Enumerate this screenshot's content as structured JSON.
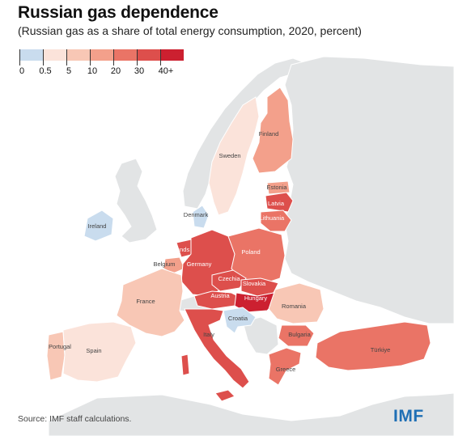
{
  "title": "Russian gas dependence",
  "subtitle": "(Russian gas as a share of total energy consumption, 2020, percent)",
  "legend": {
    "bins": [
      {
        "label": "0",
        "color": "#c9dcee"
      },
      {
        "label": "0.5",
        "color": "#fbe3da"
      },
      {
        "label": "5",
        "color": "#f8c7b5"
      },
      {
        "label": "10",
        "color": "#f3a08b"
      },
      {
        "label": "20",
        "color": "#ea7466"
      },
      {
        "label": "30",
        "color": "#dd4f4c"
      },
      {
        "label": "40+",
        "color": "#cc2030"
      }
    ]
  },
  "countries": {
    "finland": {
      "label": "Finland",
      "bin": 3
    },
    "sweden": {
      "label": "Sweden",
      "bin": 1
    },
    "estonia": {
      "label": "Estonia",
      "bin": 3
    },
    "latvia": {
      "label": "Latvia",
      "bin": 5
    },
    "lithuania": {
      "label": "Lithuania",
      "bin": 4
    },
    "denmark": {
      "label": "Denmark",
      "bin": 0
    },
    "ireland": {
      "label": "Ireland",
      "bin": 0
    },
    "netherlands": {
      "label": "Netherlands",
      "bin": 5
    },
    "belgium": {
      "label": "Belgium",
      "bin": 3
    },
    "germany": {
      "label": "Germany",
      "bin": 5
    },
    "poland": {
      "label": "Poland",
      "bin": 4
    },
    "czechia": {
      "label": "Czechia",
      "bin": 5
    },
    "slovakia": {
      "label": "Slovakia",
      "bin": 5
    },
    "austria": {
      "label": "Austria",
      "bin": 5
    },
    "hungary": {
      "label": "Hungary",
      "bin": 6
    },
    "france": {
      "label": "France",
      "bin": 2
    },
    "romania": {
      "label": "Romania",
      "bin": 2
    },
    "croatia": {
      "label": "Croatia",
      "bin": 0
    },
    "italy": {
      "label": "Italy",
      "bin": 5
    },
    "bulgaria": {
      "label": "Bulgaria",
      "bin": 4
    },
    "portugal": {
      "label": "Portugal",
      "bin": 2
    },
    "spain": {
      "label": "Spain",
      "bin": 1
    },
    "greece": {
      "label": "Greece",
      "bin": 4
    },
    "turkiye": {
      "label": "Türkiye",
      "bin": 4
    }
  },
  "colors": {
    "land_no_data": "#e2e4e5",
    "water": "#ffffff",
    "border": "#ffffff"
  },
  "source": "Source: IMF staff calculations.",
  "logo": "IMF"
}
